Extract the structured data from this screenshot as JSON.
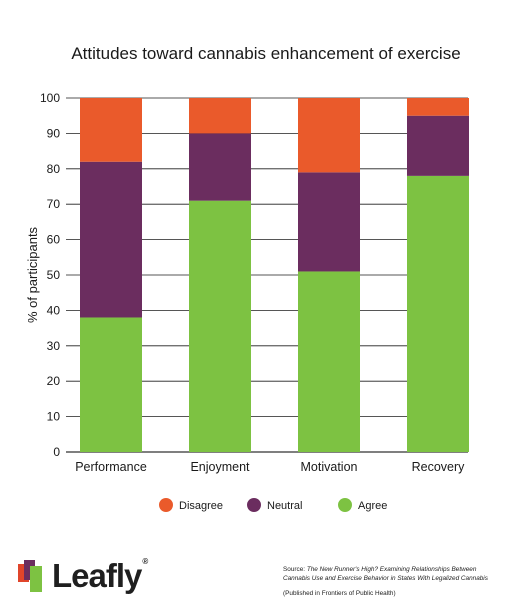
{
  "chart_data": {
    "type": "bar",
    "stacked": true,
    "title": "Attitudes toward cannabis enhancement of exercise",
    "xlabel": "",
    "ylabel": "% of participants",
    "ylim": [
      0,
      100
    ],
    "yticks": [
      0,
      10,
      20,
      30,
      40,
      50,
      60,
      70,
      80,
      90,
      100
    ],
    "grid": true,
    "legend_position": "bottom",
    "categories": [
      "Performance",
      "Enjoyment",
      "Motivation",
      "Recovery"
    ],
    "series": [
      {
        "name": "Agree",
        "color": "#7dc242",
        "values": [
          38,
          71,
          51,
          78
        ]
      },
      {
        "name": "Neutral",
        "color": "#6b2d5f",
        "values": [
          44,
          19,
          28,
          17
        ]
      },
      {
        "name": "Disagree",
        "color": "#ea5a2b",
        "values": [
          18,
          10,
          21,
          5
        ]
      }
    ],
    "legend_order": [
      "Disagree",
      "Neutral",
      "Agree"
    ]
  },
  "brand": {
    "name": "Leafly",
    "trademark": "®",
    "logo_icon": "leafly-logo-icon"
  },
  "source": {
    "prefix": "Source: ",
    "title": "The New Runner's High? Examining Relationships Between Cannabis Use and Exercise Behavior in States With Legalized Cannabis",
    "published": "(Published in Frontiers of Public Health)"
  }
}
